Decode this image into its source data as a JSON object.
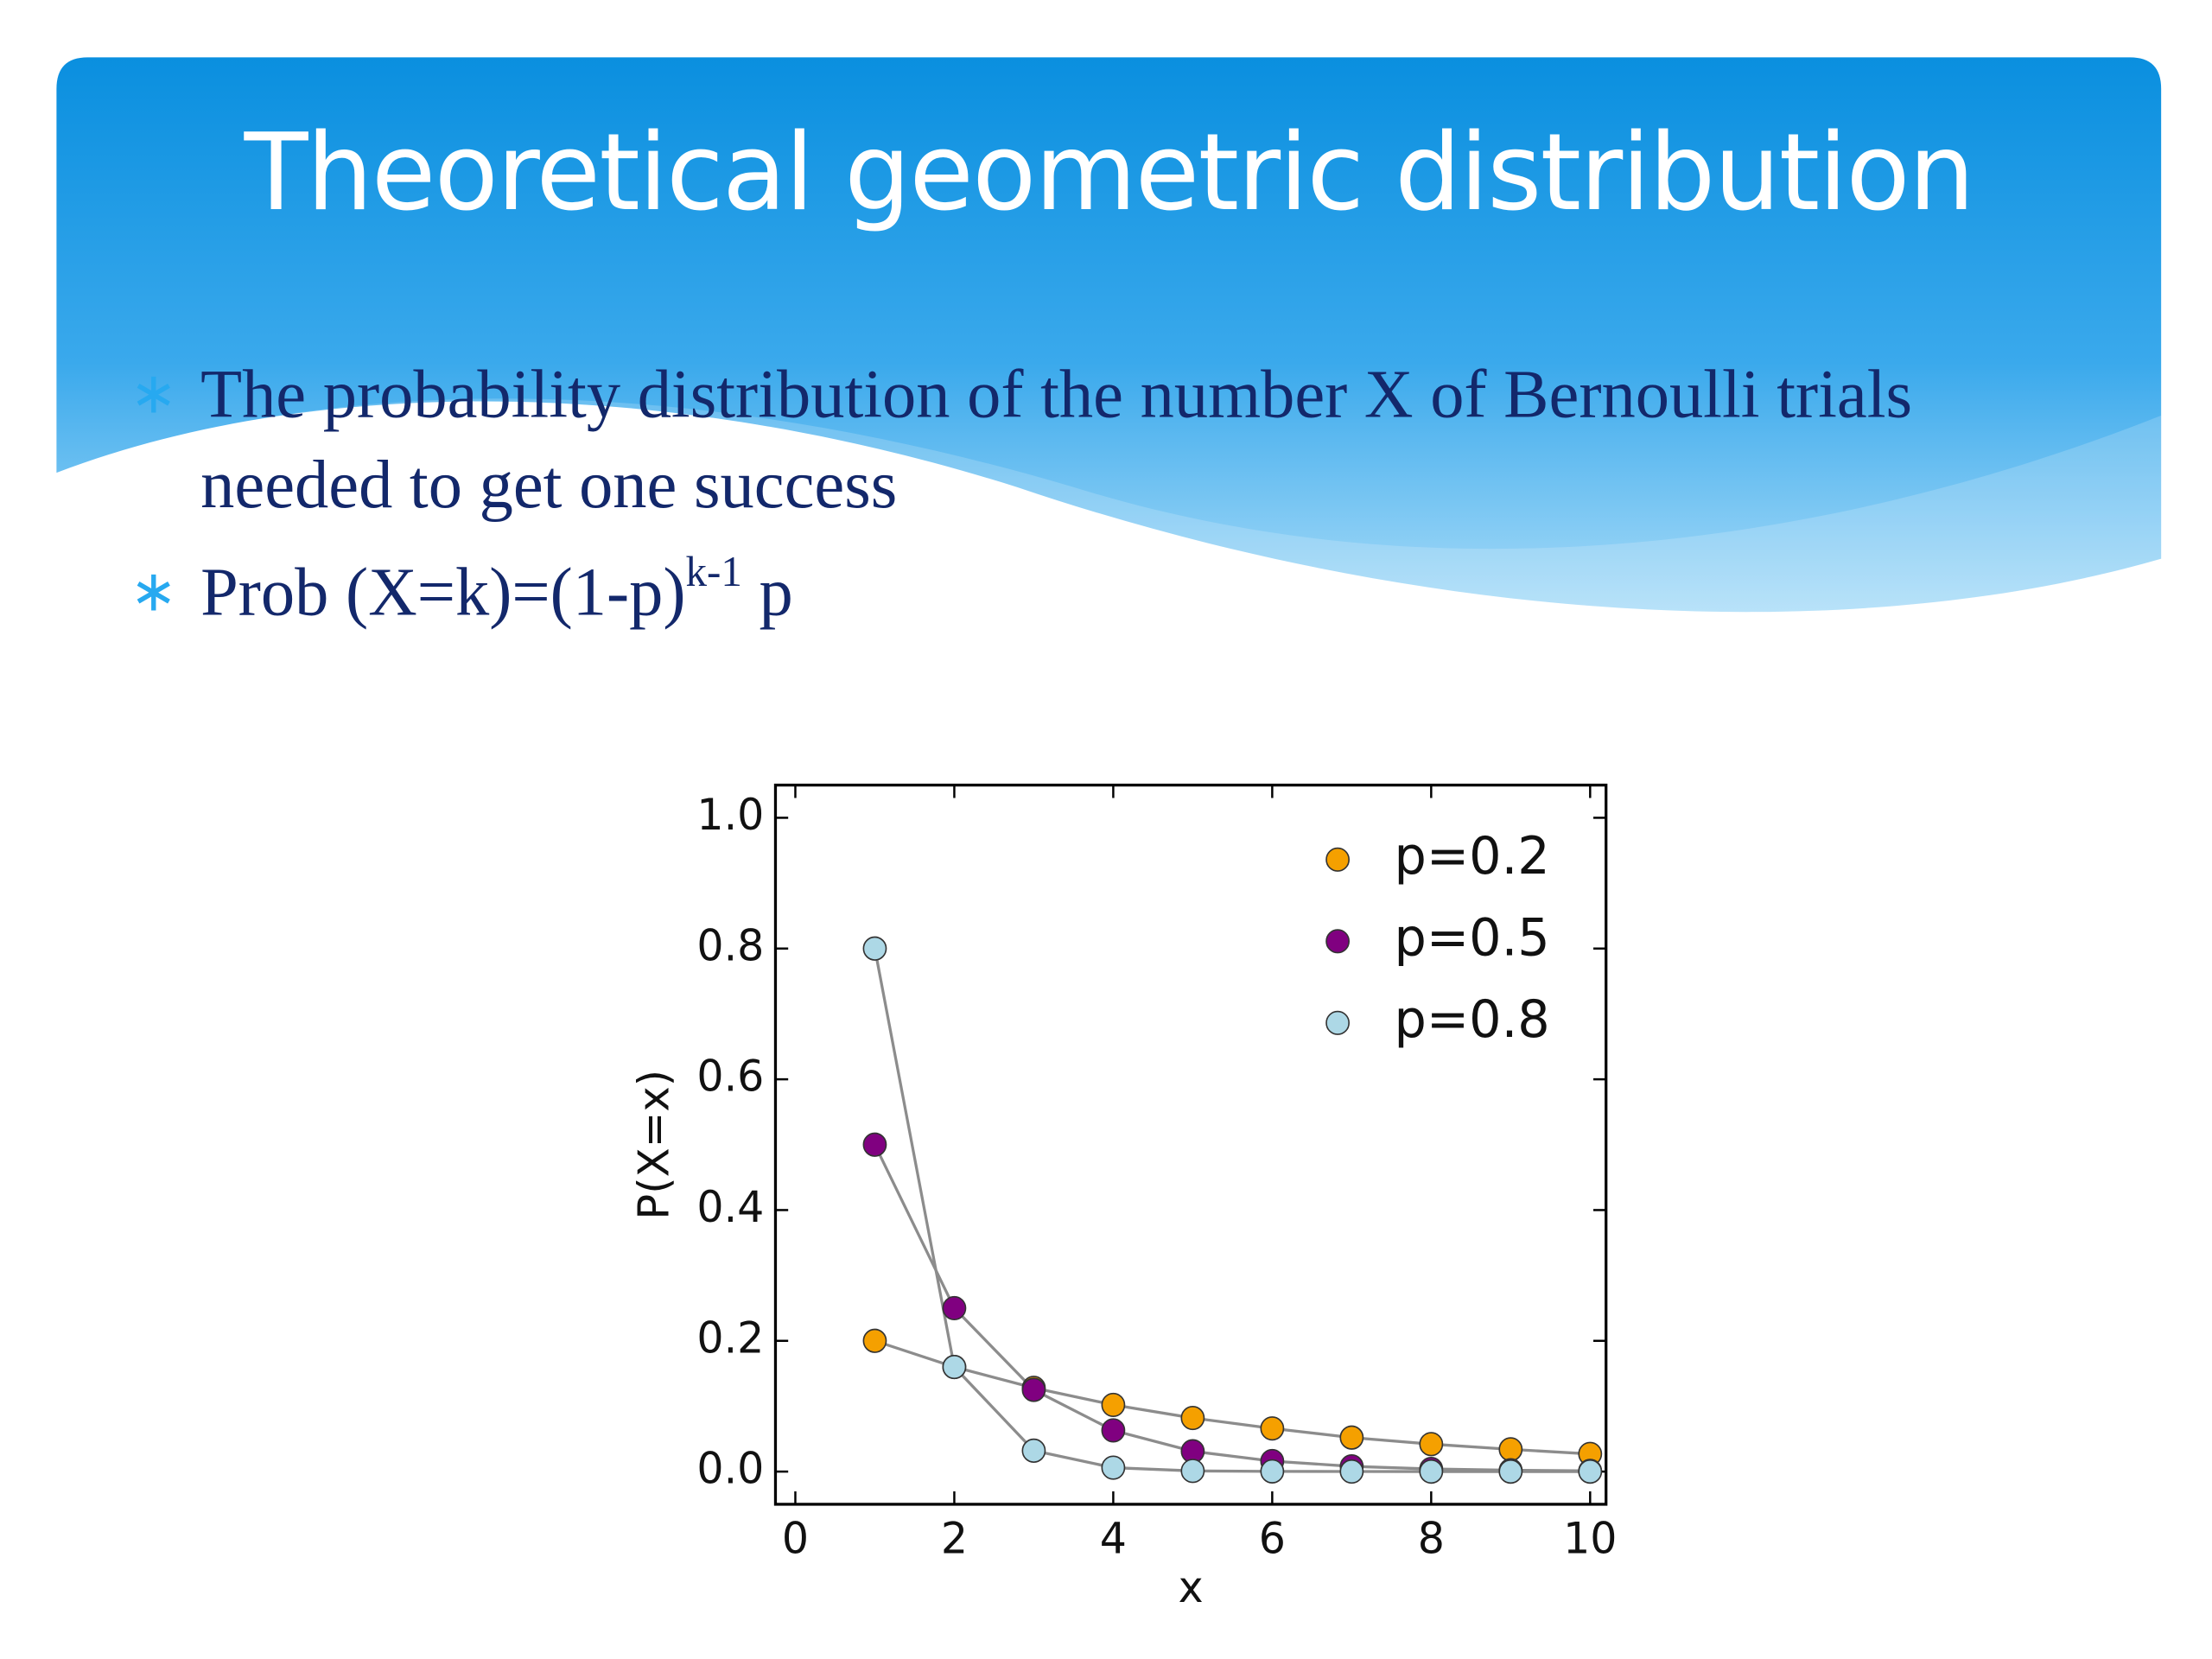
{
  "slide": {
    "title": "Theoretical geometric distribution",
    "bullets": [
      {
        "text": "The probability distribution of the number X of Bernoulli trials needed to get one success"
      },
      {
        "text": "Prob (X=k)=(1-p)",
        "superscript": "k-1",
        "tail": "p"
      }
    ]
  },
  "chart_data": {
    "type": "line",
    "xlabel": "x",
    "ylabel": "P(X=x)",
    "x": [
      1,
      2,
      3,
      4,
      5,
      6,
      7,
      8,
      9,
      10
    ],
    "series": [
      {
        "name": "p=0.2",
        "color": "#f5a000",
        "values": [
          0.2,
          0.16,
          0.128,
          0.102,
          0.082,
          0.066,
          0.052,
          0.042,
          0.034,
          0.027
        ]
      },
      {
        "name": "p=0.5",
        "color": "#800080",
        "values": [
          0.5,
          0.25,
          0.125,
          0.063,
          0.031,
          0.016,
          0.008,
          0.004,
          0.002,
          0.001
        ]
      },
      {
        "name": "p=0.8",
        "color": "#add8e6",
        "values": [
          0.8,
          0.16,
          0.032,
          0.006,
          0.001,
          0.0003,
          0.0001,
          0,
          0,
          0
        ]
      }
    ],
    "line_color": "#8c8c8c",
    "marker_edge": "#333333",
    "xlim": [
      -0.25,
      10.2
    ],
    "xticks": [
      0,
      2,
      4,
      6,
      8,
      10
    ],
    "ylim": [
      -0.05,
      1.05
    ],
    "yticks": [
      {
        "value": 0,
        "label": "0.0"
      },
      0.2,
      0.4,
      0.6,
      0.8,
      {
        "value": 1,
        "label": "1.0"
      }
    ],
    "grid": false,
    "legend": "upper right"
  }
}
